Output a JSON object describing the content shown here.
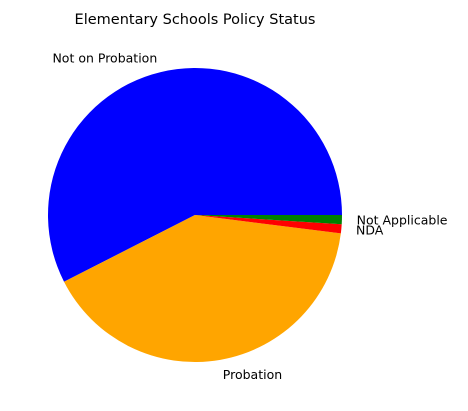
{
  "chart_data": {
    "type": "pie",
    "title": "Elementary Schools Policy Status",
    "categories": [
      "Not on Probation",
      "Probation",
      "NDA",
      "Not Applicable"
    ],
    "values": [
      57.5,
      40.5,
      1.0,
      1.0
    ],
    "colors": [
      "#0000ff",
      "#ffa500",
      "#ff0000",
      "#008000"
    ],
    "start_angle_degrees": 0,
    "direction": "counterclockwise",
    "legend": "none"
  }
}
